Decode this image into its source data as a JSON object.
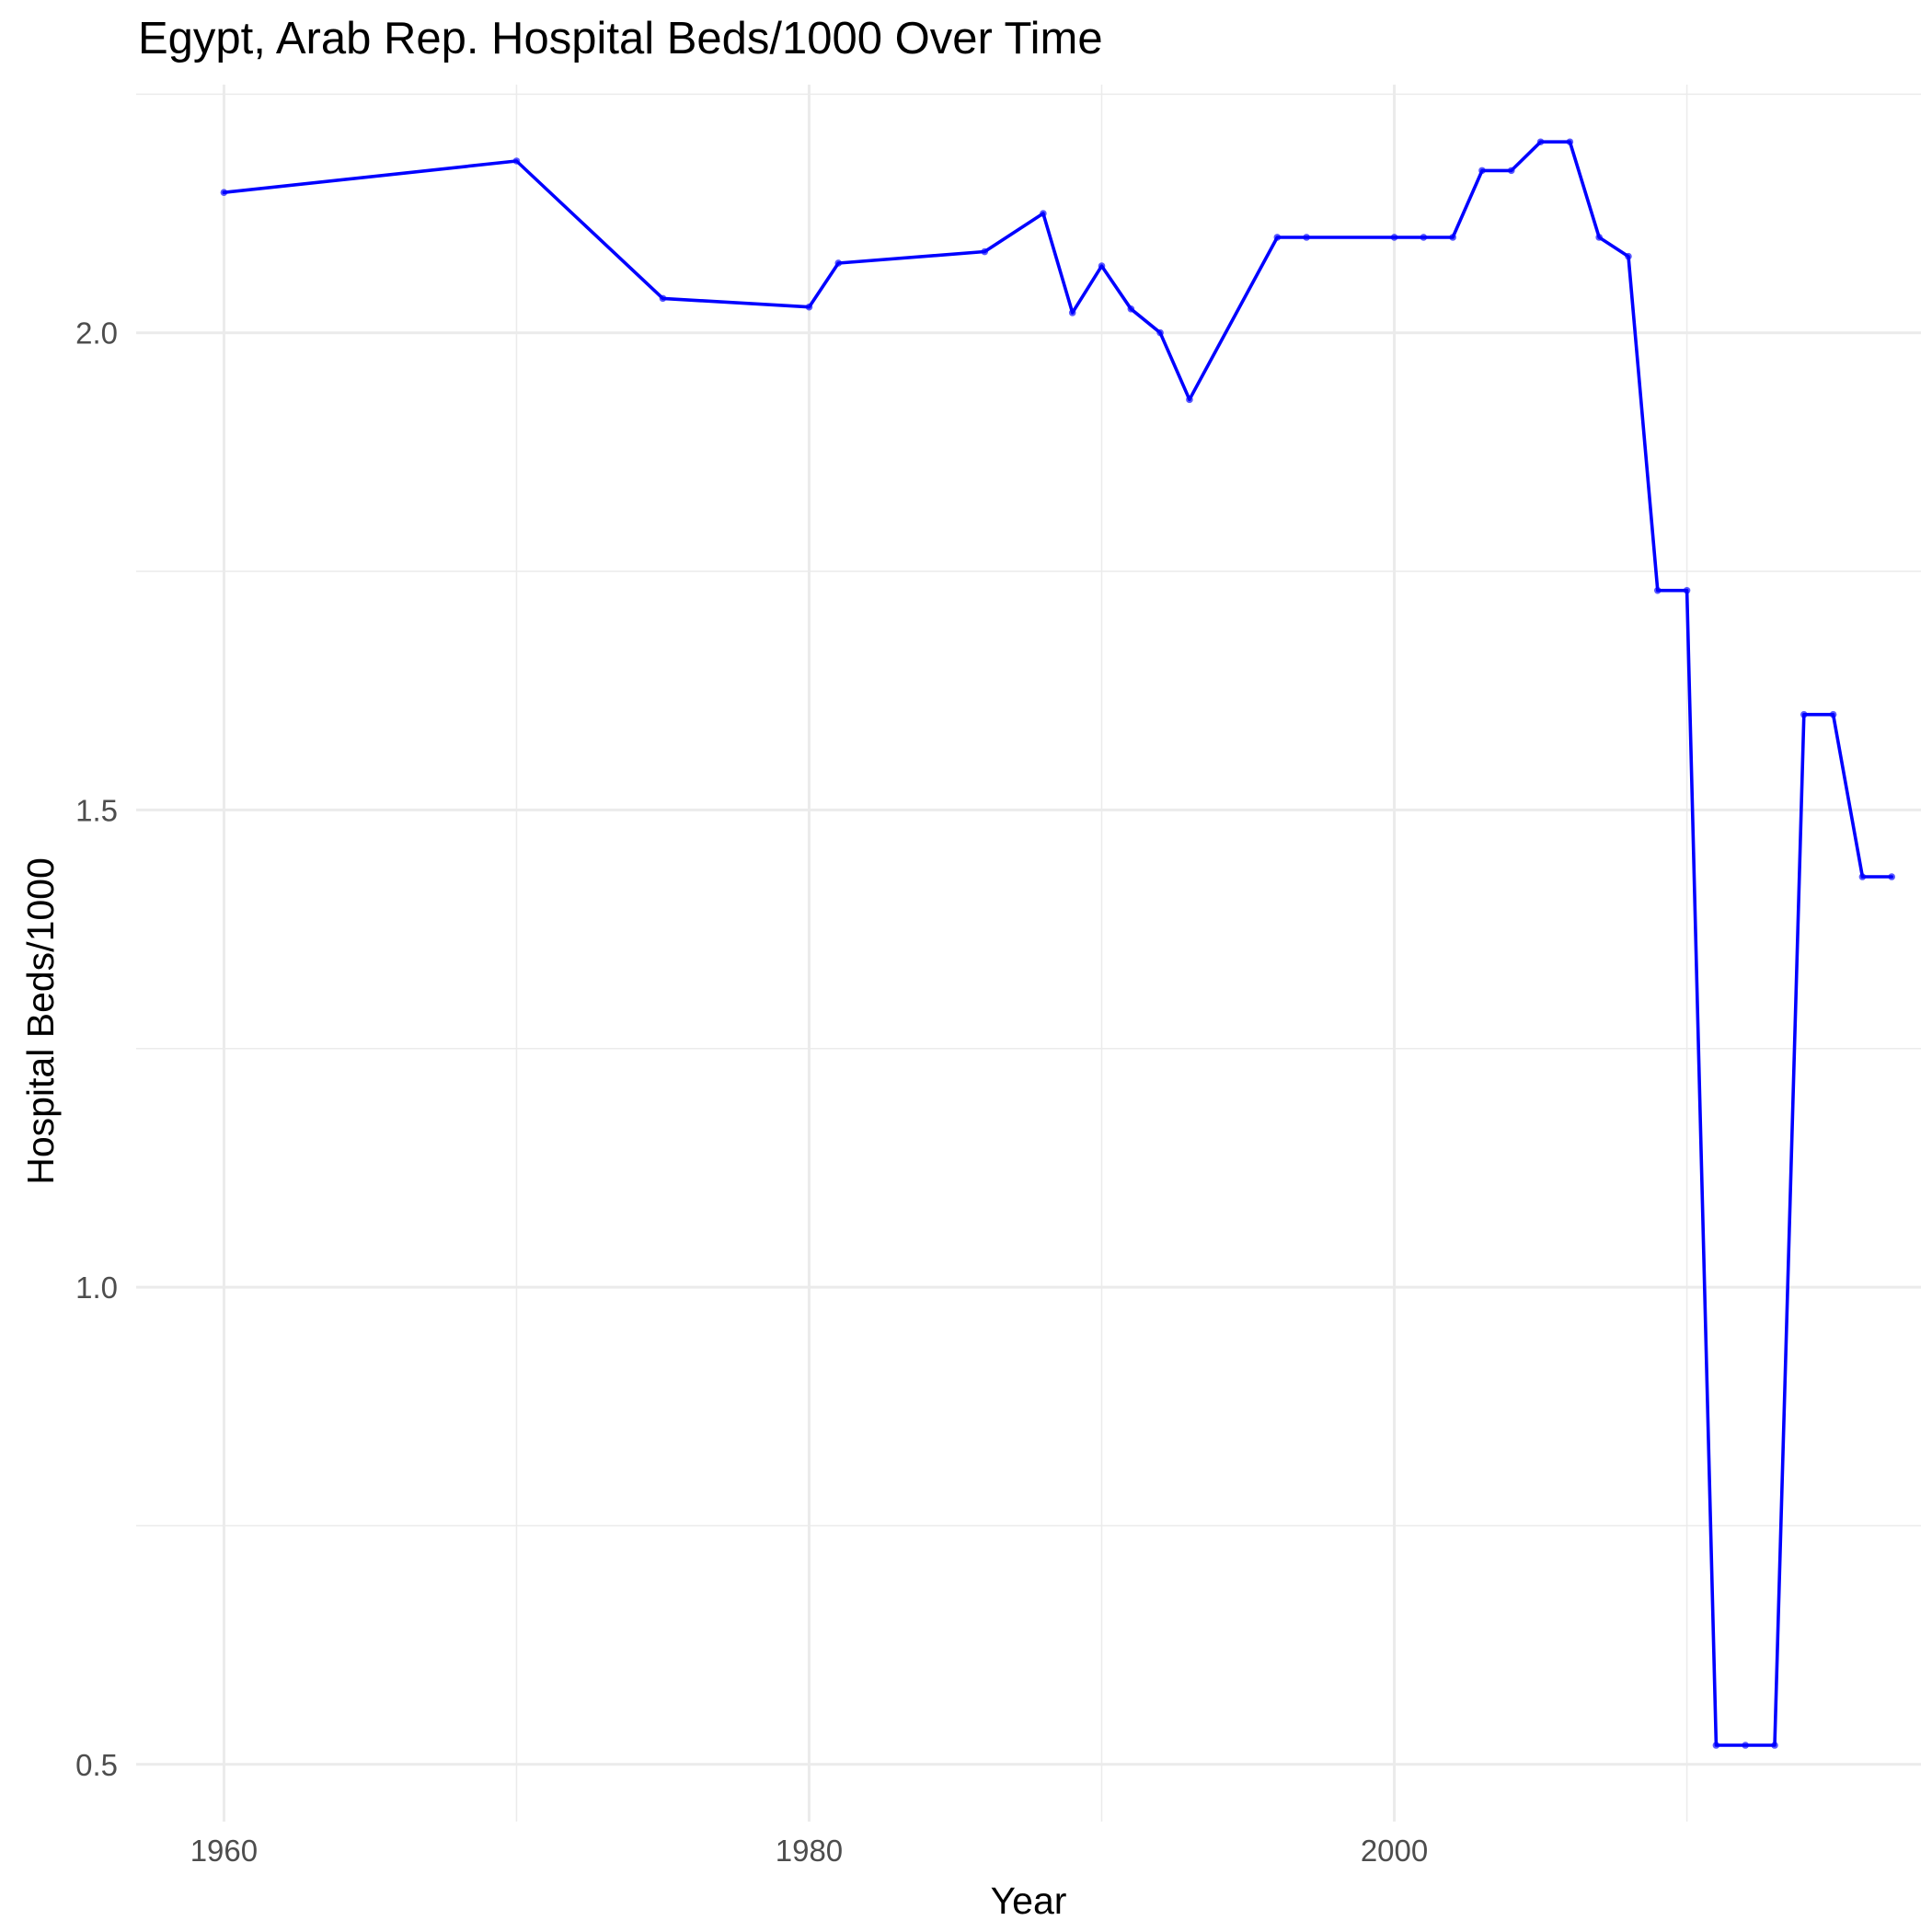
{
  "chart_data": {
    "type": "line",
    "title": "Egypt, Arab Rep. Hospital Beds/1000 Over Time",
    "xlabel": "Year",
    "ylabel": "Hospital Beds/1000",
    "xlim": [
      1957,
      2018
    ],
    "ylim": [
      0.44,
      2.26
    ],
    "x_major_ticks": [
      1960,
      1980,
      2000
    ],
    "x_minor_ticks": [
      1970,
      1990,
      2010
    ],
    "y_major_ticks": [
      0.5,
      1.0,
      1.5,
      2.0
    ],
    "y_minor_ticks": [
      0.75,
      1.25,
      1.75,
      2.25
    ],
    "grid": true,
    "line_color": "#0000ff",
    "series": [
      {
        "x": [
          1960,
          1970,
          1975,
          1980,
          1981,
          1986,
          1988,
          1989,
          1990,
          1991,
          1992,
          1993,
          1996,
          1997,
          2000,
          2001,
          2002,
          2003,
          2004,
          2005,
          2006,
          2007,
          2008,
          2009,
          2010,
          2011,
          2012,
          2013,
          2014,
          2015,
          2016,
          2017
        ],
        "values": [
          2.147,
          2.18,
          2.036,
          2.027,
          2.073,
          2.085,
          2.125,
          2.021,
          2.07,
          2.025,
          2.0,
          1.93,
          2.1,
          2.1,
          2.1,
          2.1,
          2.1,
          2.17,
          2.17,
          2.2,
          2.2,
          2.1,
          2.08,
          1.73,
          1.73,
          0.52,
          0.52,
          0.52,
          1.6,
          1.6,
          1.43,
          1.43
        ]
      }
    ]
  }
}
